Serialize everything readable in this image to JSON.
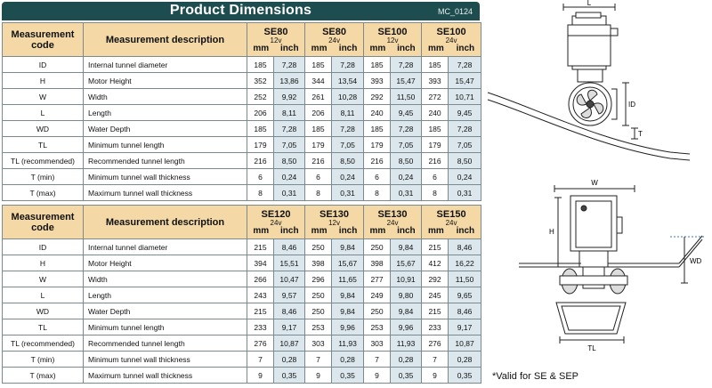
{
  "header": {
    "title": "Product Dimensions",
    "code": "MC_0124"
  },
  "col_headers": {
    "code": "Measurement code",
    "code_line1": "Measurement",
    "code_line2": "code",
    "desc": "Measurement description",
    "mm": "mm",
    "inch": "inch"
  },
  "table1": {
    "models": [
      {
        "name": "SE80",
        "voltage": "12v"
      },
      {
        "name": "SE80",
        "voltage": "24v"
      },
      {
        "name": "SE100",
        "voltage": "12v"
      },
      {
        "name": "SE100",
        "voltage": "24v"
      }
    ],
    "rows": [
      {
        "code": "ID",
        "desc": "Internal tunnel diameter",
        "values": [
          [
            "185",
            "7,28"
          ],
          [
            "185",
            "7,28"
          ],
          [
            "185",
            "7,28"
          ],
          [
            "185",
            "7,28"
          ]
        ]
      },
      {
        "code": "H",
        "desc": "Motor Height",
        "values": [
          [
            "352",
            "13,86"
          ],
          [
            "344",
            "13,54"
          ],
          [
            "393",
            "15,47"
          ],
          [
            "393",
            "15,47"
          ]
        ]
      },
      {
        "code": "W",
        "desc": "Width",
        "values": [
          [
            "252",
            "9,92"
          ],
          [
            "261",
            "10,28"
          ],
          [
            "292",
            "11,50"
          ],
          [
            "272",
            "10,71"
          ]
        ]
      },
      {
        "code": "L",
        "desc": "Length",
        "values": [
          [
            "206",
            "8,11"
          ],
          [
            "206",
            "8,11"
          ],
          [
            "240",
            "9,45"
          ],
          [
            "240",
            "9,45"
          ]
        ]
      },
      {
        "code": "WD",
        "desc": "Water Depth",
        "values": [
          [
            "185",
            "7,28"
          ],
          [
            "185",
            "7,28"
          ],
          [
            "185",
            "7,28"
          ],
          [
            "185",
            "7,28"
          ]
        ]
      },
      {
        "code": "TL",
        "desc": "Minimum tunnel length",
        "values": [
          [
            "179",
            "7,05"
          ],
          [
            "179",
            "7,05"
          ],
          [
            "179",
            "7,05"
          ],
          [
            "179",
            "7,05"
          ]
        ]
      },
      {
        "code": "TL (recommended)",
        "desc": "Recommended tunnel length",
        "values": [
          [
            "216",
            "8,50"
          ],
          [
            "216",
            "8,50"
          ],
          [
            "216",
            "8,50"
          ],
          [
            "216",
            "8,50"
          ]
        ]
      },
      {
        "code": "T (min)",
        "desc": "Minimum tunnel wall thickness",
        "values": [
          [
            "6",
            "0,24"
          ],
          [
            "6",
            "0,24"
          ],
          [
            "6",
            "0,24"
          ],
          [
            "6",
            "0,24"
          ]
        ]
      },
      {
        "code": "T (max)",
        "desc": "Maximum tunnel wall thickness",
        "values": [
          [
            "8",
            "0,31"
          ],
          [
            "8",
            "0,31"
          ],
          [
            "8",
            "0,31"
          ],
          [
            "8",
            "0,31"
          ]
        ]
      }
    ]
  },
  "table2": {
    "models": [
      {
        "name": "SE120",
        "voltage": "24v"
      },
      {
        "name": "SE130",
        "voltage": "12v"
      },
      {
        "name": "SE130",
        "voltage": "24v"
      },
      {
        "name": "SE150",
        "voltage": "24v"
      }
    ],
    "rows": [
      {
        "code": "ID",
        "desc": "Internal tunnel diameter",
        "values": [
          [
            "215",
            "8,46"
          ],
          [
            "250",
            "9,84"
          ],
          [
            "250",
            "9,84"
          ],
          [
            "215",
            "8,46"
          ]
        ]
      },
      {
        "code": "H",
        "desc": "Motor Height",
        "values": [
          [
            "394",
            "15,51"
          ],
          [
            "398",
            "15,67"
          ],
          [
            "398",
            "15,67"
          ],
          [
            "412",
            "16,22"
          ]
        ]
      },
      {
        "code": "W",
        "desc": "Width",
        "values": [
          [
            "266",
            "10,47"
          ],
          [
            "296",
            "11,65"
          ],
          [
            "277",
            "10,91"
          ],
          [
            "292",
            "11,50"
          ]
        ]
      },
      {
        "code": "L",
        "desc": "Length",
        "values": [
          [
            "243",
            "9,57"
          ],
          [
            "250",
            "9,84"
          ],
          [
            "249",
            "9,80"
          ],
          [
            "245",
            "9,65"
          ]
        ]
      },
      {
        "code": "WD",
        "desc": "Water Depth",
        "values": [
          [
            "215",
            "8,46"
          ],
          [
            "250",
            "9,84"
          ],
          [
            "250",
            "9,84"
          ],
          [
            "215",
            "8,46"
          ]
        ]
      },
      {
        "code": "TL",
        "desc": "Minimum tunnel length",
        "values": [
          [
            "233",
            "9,17"
          ],
          [
            "253",
            "9,96"
          ],
          [
            "253",
            "9,96"
          ],
          [
            "233",
            "9,17"
          ]
        ]
      },
      {
        "code": "TL (recommended)",
        "desc": "Recommended tunnel length",
        "values": [
          [
            "276",
            "10,87"
          ],
          [
            "303",
            "11,93"
          ],
          [
            "303",
            "11,93"
          ],
          [
            "276",
            "10,87"
          ]
        ]
      },
      {
        "code": "T (min)",
        "desc": "Minimum tunnel wall thickness",
        "values": [
          [
            "7",
            "0,28"
          ],
          [
            "7",
            "0,28"
          ],
          [
            "7",
            "0,28"
          ],
          [
            "7",
            "0,28"
          ]
        ]
      },
      {
        "code": "T (max)",
        "desc": "Maximum tunnel wall thickness",
        "values": [
          [
            "9",
            "0,35"
          ],
          [
            "9",
            "0,35"
          ],
          [
            "9",
            "0,35"
          ],
          [
            "9",
            "0,35"
          ]
        ]
      }
    ]
  },
  "diagram_labels": {
    "top": {
      "L": "L",
      "ID": "ID",
      "T": "T"
    },
    "bottom": {
      "W": "W",
      "H": "H",
      "WD": "WD",
      "TL": "TL"
    }
  },
  "footnote": "*Valid for SE & SEP",
  "colors": {
    "title_bg": "#1e4d4f",
    "header_bg": "#f4d9a6",
    "inch_bg": "#dbe7ec",
    "border": "#7a8a8f"
  }
}
